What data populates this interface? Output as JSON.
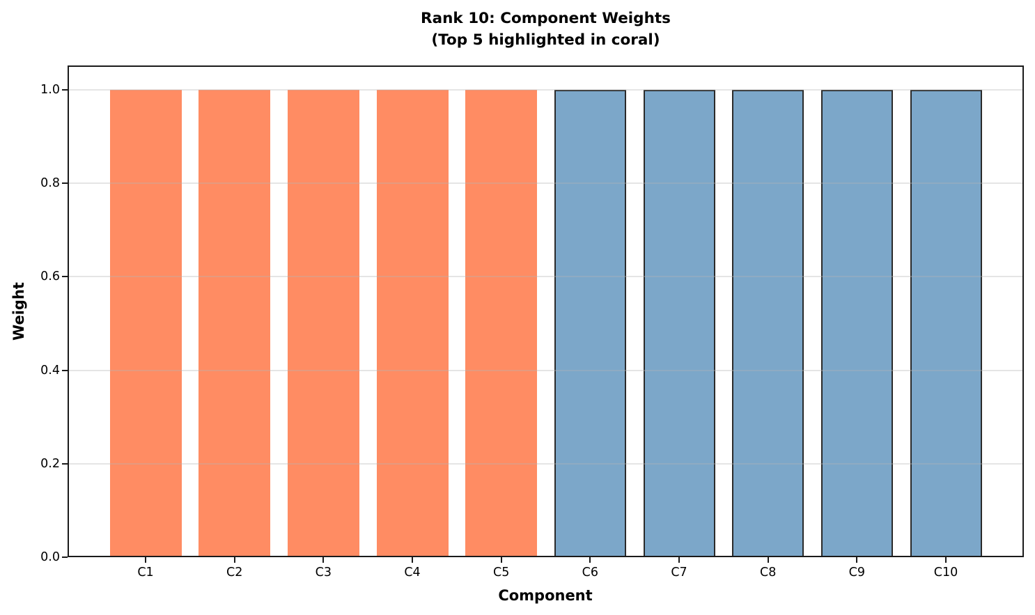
{
  "figure": {
    "title_line1": "Rank 10: Component Weights",
    "title_line2": "(Top 5 highlighted in coral)",
    "xlabel": "Component",
    "ylabel": "Weight"
  },
  "chart_data": {
    "type": "bar",
    "title": "Rank 10: Component Weights\n(Top 5 highlighted in coral)",
    "xlabel": "Component",
    "ylabel": "Weight",
    "categories": [
      "C1",
      "C2",
      "C3",
      "C4",
      "C5",
      "C6",
      "C7",
      "C8",
      "C9",
      "C10"
    ],
    "values": [
      1.0,
      1.0,
      1.0,
      1.0,
      1.0,
      1.0,
      1.0,
      1.0,
      1.0,
      1.0
    ],
    "highlight_count": 5,
    "ylim": [
      0.0,
      1.05
    ],
    "yticks": [
      0.0,
      0.2,
      0.4,
      0.6,
      0.8,
      1.0
    ],
    "ytick_labels": [
      "0.0",
      "0.2",
      "0.4",
      "0.6",
      "0.8",
      "1.0"
    ],
    "grid": true,
    "legend": "none",
    "colors": {
      "highlight_fill": "#FF8C63",
      "normal_fill": "#7CA7C9",
      "normal_edge": "#2A2A2A",
      "gridline": "rgba(180,180,180,0.35)",
      "spine": "#1a1a1a",
      "text": "#000000"
    }
  }
}
